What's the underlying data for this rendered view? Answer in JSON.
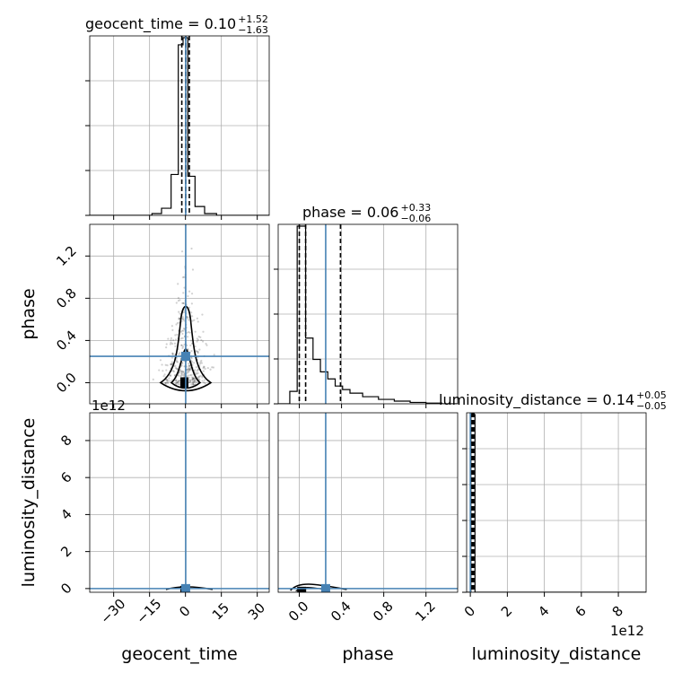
{
  "chart_data": {
    "type": "corner",
    "parameters": [
      "geocent_time",
      "phase",
      "luminosity_distance"
    ],
    "truth": {
      "geocent_time": 0.1,
      "phase": 0.25,
      "luminosity_distance": 0.0
    },
    "grid": true,
    "diagonal_titles": [
      {
        "name": "geocent_time",
        "text": "geocent_time = 0.10",
        "sup": "+1.52",
        "sub": "−1.63"
      },
      {
        "name": "phase",
        "text": "phase = 0.06",
        "sup": "+0.33",
        "sub": "−0.06"
      },
      {
        "name": "luminosity_distance",
        "text": "luminosity_distance = 0.14",
        "sup": "+0.05",
        "sub": "−0.05"
      }
    ],
    "axis_labels": {
      "x": [
        "geocent_time",
        "phase",
        "luminosity_distance"
      ],
      "y": [
        "phase",
        "luminosity_distance"
      ]
    },
    "ranges": {
      "geocent_time": [
        -40,
        35
      ],
      "phase": [
        -0.2,
        1.5
      ],
      "luminosity_distance": [
        -0.2,
        9.5
      ]
    },
    "ticks": {
      "geocent_time": {
        "values": [
          -30,
          -15,
          0,
          15,
          30
        ],
        "labels": [
          "−30",
          "−15",
          "0",
          "15",
          "30"
        ]
      },
      "phase": {
        "values": [
          0.0,
          0.4,
          0.8,
          1.2
        ],
        "labels": [
          "0.0",
          "0.4",
          "0.8",
          "1.2"
        ]
      },
      "luminosity_distance": {
        "values": [
          0,
          2,
          4,
          6,
          8
        ],
        "labels": [
          "0",
          "2",
          "4",
          "6",
          "8"
        ]
      }
    },
    "offset_text": "1e12",
    "histograms": {
      "geocent_time": {
        "quantiles": [
          -1.53,
          0.1,
          1.62
        ],
        "bins": [
          [
            -40,
            -14,
            0
          ],
          [
            -14,
            -10,
            0.01
          ],
          [
            -10,
            -6,
            0.04
          ],
          [
            -6,
            -3,
            0.23
          ],
          [
            -3,
            -1,
            0.96
          ],
          [
            -1,
            1,
            1.0
          ],
          [
            1,
            4,
            0.22
          ],
          [
            4,
            8,
            0.05
          ],
          [
            8,
            13,
            0.01
          ],
          [
            13,
            35,
            0
          ]
        ]
      },
      "phase": {
        "quantiles": [
          0.0,
          0.06,
          0.39
        ],
        "bins": [
          [
            -0.2,
            -0.09,
            0
          ],
          [
            -0.09,
            -0.02,
            0.07
          ],
          [
            -0.02,
            0.06,
            1.0
          ],
          [
            0.06,
            0.13,
            0.37
          ],
          [
            0.13,
            0.2,
            0.25
          ],
          [
            0.2,
            0.27,
            0.18
          ],
          [
            0.27,
            0.34,
            0.14
          ],
          [
            0.34,
            0.41,
            0.1
          ],
          [
            0.41,
            0.48,
            0.08
          ],
          [
            0.48,
            0.6,
            0.06
          ],
          [
            0.6,
            0.75,
            0.04
          ],
          [
            0.75,
            0.9,
            0.025
          ],
          [
            0.9,
            1.05,
            0.015
          ],
          [
            1.05,
            1.2,
            0.008
          ],
          [
            1.2,
            1.35,
            0.004
          ],
          [
            1.35,
            1.5,
            0
          ]
        ]
      },
      "luminosity_distance": {
        "quantiles": [
          0.09,
          0.14,
          0.19
        ],
        "bins": [
          [
            -0.2,
            0.03,
            0
          ],
          [
            0.03,
            0.25,
            1.0
          ],
          [
            0.25,
            9.5,
            0
          ]
        ]
      }
    }
  }
}
